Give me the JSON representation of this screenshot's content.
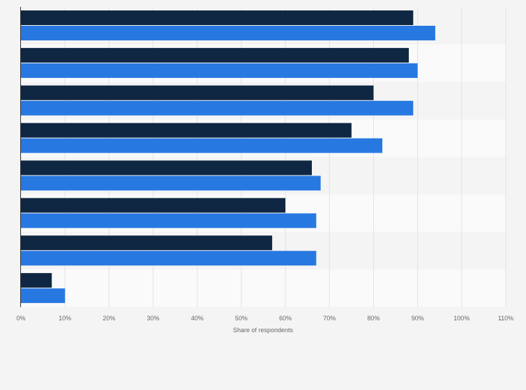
{
  "chart_data": {
    "type": "bar",
    "orientation": "horizontal",
    "categories": [
      "",
      "",
      "",
      "",
      "",
      "",
      "",
      ""
    ],
    "series": [
      {
        "color": "#0f2742",
        "values": [
          89,
          88,
          80,
          75,
          66,
          60,
          57,
          7
        ]
      },
      {
        "color": "#2878e1",
        "values": [
          94,
          90,
          89,
          82,
          68,
          67,
          67,
          10
        ]
      }
    ],
    "xlabel": "Share of respondents",
    "xlim": [
      0,
      110
    ],
    "xticks": [
      "0%",
      "10%",
      "20%",
      "30%",
      "40%",
      "50%",
      "60%",
      "70%",
      "80%",
      "90%",
      "100%",
      "110%"
    ],
    "grid": true,
    "legend": "none"
  }
}
